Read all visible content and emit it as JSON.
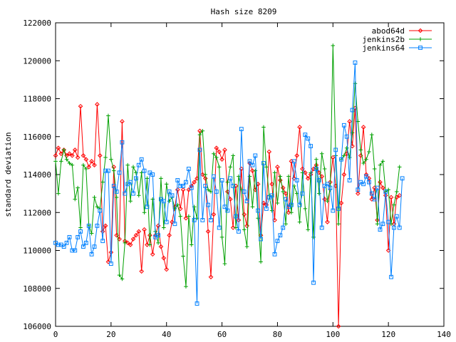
{
  "chart_data": {
    "type": "line",
    "title": "Hash size 8209",
    "xlabel": "",
    "ylabel": "standard deviation",
    "xlim": [
      0,
      140
    ],
    "ylim": [
      106000,
      122000
    ],
    "x_ticks": [
      0,
      20,
      40,
      60,
      80,
      100,
      120,
      140
    ],
    "y_ticks": [
      106000,
      108000,
      110000,
      112000,
      114000,
      116000,
      118000,
      120000,
      122000
    ],
    "grid": false,
    "legend_position": "top-right",
    "series": [
      {
        "name": "abod64d",
        "color": "#ff0000",
        "marker": "diamond",
        "values": [
          115000,
          115400,
          115100,
          115300,
          115000,
          115100,
          115000,
          115300,
          114900,
          117600,
          115000,
          114800,
          114400,
          114700,
          114500,
          117700,
          115000,
          111000,
          111300,
          109400,
          109900,
          114400,
          110800,
          110600,
          116800,
          110500,
          110400,
          110300,
          110600,
          110800,
          111000,
          108900,
          111100,
          110300,
          110800,
          109800,
          110800,
          111300,
          110200,
          109600,
          109000,
          110800,
          111500,
          112300,
          113200,
          112200,
          113200,
          111700,
          113200,
          113400,
          113600,
          113800,
          116300,
          114000,
          113800,
          111000,
          108600,
          111900,
          115400,
          115200,
          114800,
          115300,
          113100,
          112700,
          111200,
          113400,
          111600,
          114300,
          111900,
          111300,
          114600,
          114200,
          113200,
          113500,
          110800,
          112500,
          112400,
          115200,
          113500,
          111600,
          114400,
          113700,
          113300,
          113000,
          112000,
          114700,
          113800,
          115000,
          116500,
          114300,
          114100,
          113800,
          114000,
          114300,
          114500,
          114100,
          113900,
          112700,
          111500,
          113600,
          114900,
          113400,
          106000,
          112500,
          114000,
          115100,
          116800,
          115500,
          117500,
          113000,
          115000,
          116500,
          114000,
          113800,
          112700,
          113300,
          111600,
          113600,
          113300,
          112900,
          110000,
          112800,
          111400,
          112800,
          112900
        ]
      },
      {
        "name": "jenkins2b",
        "color": "#00a000",
        "marker": "plus",
        "values": [
          114700,
          113000,
          114700,
          115300,
          114800,
          114600,
          114500,
          112700,
          113300,
          111200,
          114500,
          114300,
          111300,
          110900,
          112800,
          112300,
          112200,
          113600,
          114900,
          117100,
          114800,
          114200,
          112800,
          108700,
          108500,
          110400,
          114500,
          112600,
          114400,
          114100,
          112900,
          114100,
          112000,
          113800,
          110300,
          112700,
          111000,
          110400,
          113800,
          111200,
          113500,
          112600,
          112800,
          112200,
          112400,
          111800,
          109700,
          108100,
          111800,
          110300,
          112300,
          111700,
          116100,
          116300,
          114000,
          113200,
          113100,
          115100,
          114900,
          114400,
          110700,
          109300,
          113600,
          114400,
          115000,
          111200,
          113900,
          113200,
          111100,
          110200,
          113900,
          112300,
          114200,
          111700,
          109400,
          116500,
          114400,
          112900,
          112100,
          114100,
          112500,
          113900,
          113100,
          111400,
          113900,
          112000,
          113400,
          113000,
          111500,
          114100,
          112200,
          111100,
          114100,
          110700,
          114800,
          113000,
          115100,
          114300,
          112600,
          113200,
          120800,
          115000,
          111400,
          114800,
          115000,
          115400,
          114900,
          116200,
          118800,
          116800,
          115300,
          114600,
          114800,
          115200,
          116100,
          114300,
          111400,
          114500,
          114700,
          113100,
          113200,
          111400,
          112400,
          113100,
          114400
        ]
      },
      {
        "name": "jenkins64",
        "color": "#0080ff",
        "marker": "square",
        "values": [
          110400,
          110300,
          110300,
          110200,
          110400,
          110700,
          110000,
          110000,
          110700,
          111000,
          110200,
          110400,
          111300,
          109800,
          110200,
          111300,
          112100,
          110500,
          114200,
          114200,
          109300,
          113400,
          113100,
          114100,
          115700,
          113000,
          113500,
          113600,
          113000,
          113800,
          114500,
          114800,
          114200,
          112300,
          114100,
          114000,
          110700,
          110800,
          112700,
          112600,
          111500,
          113100,
          112900,
          111400,
          113700,
          113400,
          113400,
          113600,
          114300,
          113300,
          111600,
          107200,
          115300,
          111600,
          113400,
          112400,
          111600,
          113900,
          113100,
          111200,
          113700,
          112300,
          112100,
          113800,
          113400,
          111800,
          111000,
          116400,
          113100,
          112600,
          114700,
          114500,
          115000,
          112100,
          110600,
          114600,
          112200,
          112800,
          112900,
          109800,
          110500,
          110800,
          111200,
          112700,
          112300,
          112400,
          114700,
          113700,
          112400,
          113000,
          116100,
          115900,
          115500,
          108300,
          114300,
          113700,
          111200,
          113400,
          113500,
          113300,
          112100,
          115300,
          112200,
          114800,
          116600,
          116000,
          113700,
          117400,
          119900,
          113200,
          113600,
          113500,
          113900,
          113600,
          113000,
          112700,
          113300,
          111100,
          111400,
          113100,
          111500,
          108600,
          111200,
          111800,
          111200,
          113800
        ]
      }
    ]
  }
}
